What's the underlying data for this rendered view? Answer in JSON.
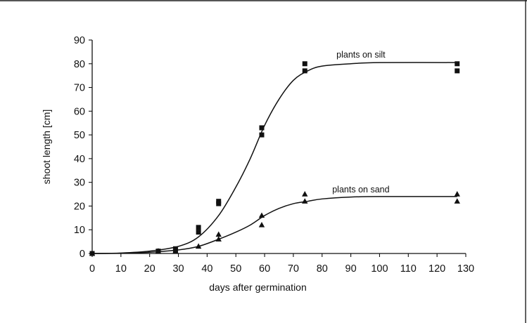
{
  "chart_data": {
    "type": "scatter",
    "title": "",
    "xlabel": "days after germination",
    "ylabel": "shoot length [cm]",
    "xlim": [
      0,
      130
    ],
    "ylim": [
      0,
      90
    ],
    "x_ticks": [
      0,
      10,
      20,
      30,
      40,
      50,
      60,
      70,
      80,
      90,
      100,
      110,
      120,
      130
    ],
    "y_ticks": [
      0,
      10,
      20,
      30,
      40,
      50,
      60,
      70,
      80,
      90
    ],
    "grid": false,
    "legend": "none",
    "series": [
      {
        "name": "plants on silt",
        "marker": "square",
        "points": [
          {
            "x": 0,
            "y": 0
          },
          {
            "x": 23,
            "y": 1
          },
          {
            "x": 29,
            "y": 1
          },
          {
            "x": 29,
            "y": 2
          },
          {
            "x": 37,
            "y": 9
          },
          {
            "x": 37,
            "y": 11
          },
          {
            "x": 44,
            "y": 21
          },
          {
            "x": 44,
            "y": 22
          },
          {
            "x": 59,
            "y": 50
          },
          {
            "x": 59,
            "y": 53
          },
          {
            "x": 74,
            "y": 77
          },
          {
            "x": 74,
            "y": 80
          },
          {
            "x": 127,
            "y": 77
          },
          {
            "x": 127,
            "y": 80
          }
        ],
        "fitted_curve": [
          {
            "x": 0,
            "y": 0
          },
          {
            "x": 10,
            "y": 0.2
          },
          {
            "x": 20,
            "y": 1
          },
          {
            "x": 30,
            "y": 3
          },
          {
            "x": 37,
            "y": 7
          },
          {
            "x": 44,
            "y": 16
          },
          {
            "x": 50,
            "y": 28
          },
          {
            "x": 55,
            "y": 40
          },
          {
            "x": 60,
            "y": 54
          },
          {
            "x": 65,
            "y": 65
          },
          {
            "x": 70,
            "y": 73
          },
          {
            "x": 75,
            "y": 77
          },
          {
            "x": 80,
            "y": 79
          },
          {
            "x": 90,
            "y": 80
          },
          {
            "x": 100,
            "y": 80.5
          },
          {
            "x": 127,
            "y": 80.5
          }
        ]
      },
      {
        "name": "plants on sand",
        "marker": "triangle",
        "points": [
          {
            "x": 0,
            "y": 0
          },
          {
            "x": 23,
            "y": 1
          },
          {
            "x": 29,
            "y": 1
          },
          {
            "x": 37,
            "y": 3
          },
          {
            "x": 44,
            "y": 6
          },
          {
            "x": 44,
            "y": 8
          },
          {
            "x": 59,
            "y": 12
          },
          {
            "x": 59,
            "y": 16
          },
          {
            "x": 74,
            "y": 22
          },
          {
            "x": 74,
            "y": 25
          },
          {
            "x": 127,
            "y": 22
          },
          {
            "x": 127,
            "y": 25
          }
        ],
        "fitted_curve": [
          {
            "x": 0,
            "y": 0
          },
          {
            "x": 10,
            "y": 0.1
          },
          {
            "x": 20,
            "y": 0.5
          },
          {
            "x": 30,
            "y": 1.5
          },
          {
            "x": 37,
            "y": 3
          },
          {
            "x": 44,
            "y": 6
          },
          {
            "x": 50,
            "y": 9
          },
          {
            "x": 55,
            "y": 12
          },
          {
            "x": 60,
            "y": 16
          },
          {
            "x": 65,
            "y": 19
          },
          {
            "x": 70,
            "y": 21
          },
          {
            "x": 75,
            "y": 22
          },
          {
            "x": 80,
            "y": 23
          },
          {
            "x": 90,
            "y": 23.8
          },
          {
            "x": 100,
            "y": 24
          },
          {
            "x": 127,
            "y": 24
          }
        ]
      }
    ],
    "annotations": [
      {
        "text": "plants on silt",
        "series": 0
      },
      {
        "text": "plants on sand",
        "series": 1
      }
    ]
  }
}
